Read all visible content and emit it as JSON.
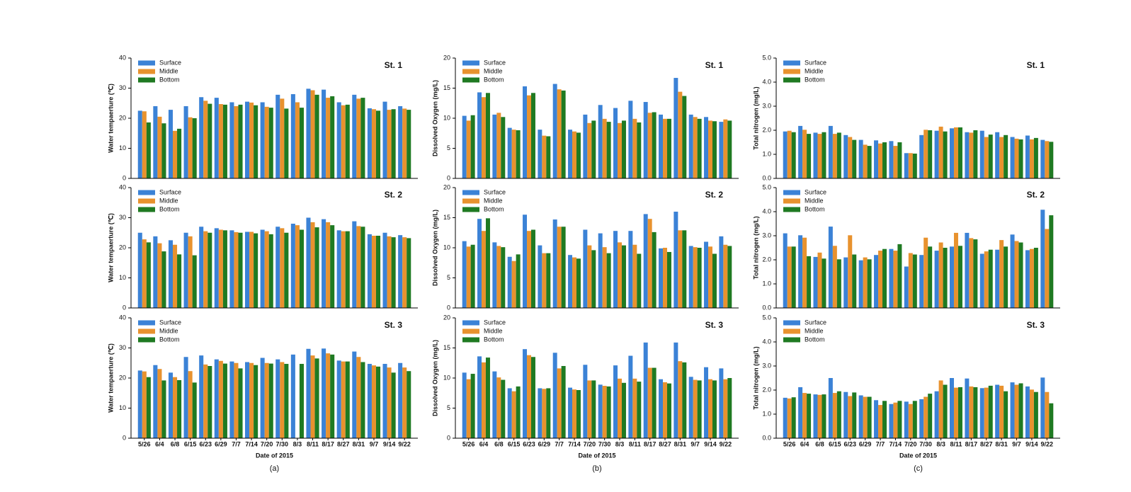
{
  "chart_data": [
    {
      "type": "bar",
      "title": "St. 1",
      "y_label": "Water tempaerture (℃)",
      "ylim": [
        0,
        40
      ],
      "yticks": [
        0,
        10,
        20,
        30,
        40
      ],
      "series": [
        {
          "name": "Surface",
          "color": "#3b82d6",
          "values": [
            22.5,
            24,
            22.8,
            24,
            27,
            26.8,
            25.3,
            25.5,
            25.3,
            27.8,
            28,
            29.8,
            29.5,
            25.3,
            27.8,
            23.3,
            25.5,
            24
          ]
        },
        {
          "name": "Middle",
          "color": "#e8922e",
          "values": [
            22.3,
            20.5,
            15.8,
            20.3,
            25.8,
            24.7,
            24,
            25.2,
            23.8,
            26.5,
            25.3,
            29.3,
            26.8,
            24.3,
            26.5,
            23,
            22.8,
            23.2
          ]
        },
        {
          "name": "Bottom",
          "color": "#1f7a22",
          "values": [
            18.6,
            18.3,
            16.5,
            20,
            24.8,
            24.5,
            24.5,
            24.3,
            23.5,
            23.2,
            23.5,
            27.8,
            27.3,
            24.5,
            26.8,
            22.5,
            23,
            22.8
          ]
        }
      ]
    },
    {
      "type": "bar",
      "title": "St. 2",
      "y_label": "Water tempaerture (℃)",
      "ylim": [
        0,
        40
      ],
      "yticks": [
        0,
        10,
        20,
        30,
        40
      ],
      "series": [
        {
          "name": "Surface",
          "color": "#3b82d6",
          "values": [
            25,
            23.8,
            22.5,
            25,
            27,
            26.5,
            25.8,
            25.3,
            26,
            27,
            28,
            30,
            29.5,
            25.8,
            28.8,
            24.5,
            25,
            24.2
          ]
        },
        {
          "name": "Middle",
          "color": "#e8922e",
          "values": [
            22.8,
            21.5,
            21,
            23.8,
            25.5,
            26,
            25.2,
            25.3,
            25.5,
            26.5,
            27.5,
            28.5,
            28.5,
            25.5,
            27.2,
            24,
            23.8,
            23.5
          ]
        },
        {
          "name": "Bottom",
          "color": "#1f7a22",
          "values": [
            21.8,
            18.8,
            17.8,
            17.5,
            25,
            25.8,
            25,
            24.8,
            24.5,
            25,
            26,
            26.8,
            27.5,
            25.5,
            27,
            24,
            23.5,
            23.2
          ]
        }
      ]
    },
    {
      "type": "bar",
      "title": "St. 3",
      "y_label": "Water tempaerture (℃)",
      "ylim": [
        0,
        40
      ],
      "yticks": [
        0,
        10,
        20,
        30,
        40
      ],
      "x_label": "Date of 2015",
      "caption": "(a)",
      "categories": [
        "5/26",
        "6/4",
        "6/8",
        "6/15",
        "6/23",
        "6/29",
        "7/7",
        "7/14",
        "7/20",
        "7/30",
        "8/3",
        "8/11",
        "8/17",
        "8/27",
        "8/31",
        "9/7",
        "9/14",
        "9/22"
      ],
      "series": [
        {
          "name": "Surface",
          "color": "#3b82d6",
          "values": [
            22.5,
            24.3,
            21.8,
            27,
            27.5,
            26.2,
            25.5,
            25.3,
            26.7,
            26.2,
            27.8,
            29.7,
            29.8,
            25.8,
            28.8,
            24.7,
            24.7,
            25
          ]
        },
        {
          "name": "Middle",
          "color": "#e8922e",
          "values": [
            22.2,
            23,
            20.3,
            22.3,
            24.5,
            25.7,
            25,
            25,
            25,
            25.3,
            null,
            27.5,
            28.2,
            25.5,
            27,
            24.2,
            23.5,
            23.5
          ]
        },
        {
          "name": "Bottom",
          "color": "#1f7a22",
          "values": [
            20.3,
            19.2,
            19.3,
            18.5,
            24,
            24.8,
            23.2,
            24.3,
            24.8,
            24.7,
            24.7,
            26.5,
            27.8,
            25.5,
            25.3,
            23.8,
            21.8,
            22.3
          ]
        }
      ]
    },
    {
      "type": "bar",
      "title": "St. 1",
      "y_label": "Dissolved Oxygen (mg/L)",
      "ylim": [
        0,
        20
      ],
      "yticks": [
        0,
        5,
        10,
        15,
        20
      ],
      "series": [
        {
          "name": "Surface",
          "color": "#3b82d6",
          "values": [
            10.4,
            14.3,
            10.6,
            8.4,
            15.3,
            8.1,
            15.7,
            8.1,
            10.6,
            12.2,
            11.7,
            12.9,
            12.7,
            10.6,
            16.7,
            10.6,
            10.2,
            9.4
          ]
        },
        {
          "name": "Middle",
          "color": "#e8922e",
          "values": [
            9.6,
            13.5,
            10.9,
            8.1,
            13.8,
            7.1,
            14.8,
            7.8,
            9.2,
            9.9,
            9.2,
            9.9,
            10.9,
            9.9,
            14.4,
            10.2,
            9.6,
            9.8
          ]
        },
        {
          "name": "Bottom",
          "color": "#1f7a22",
          "values": [
            10.5,
            14.2,
            10.2,
            8,
            14.2,
            7,
            14.6,
            7.6,
            9.6,
            9.4,
            9.6,
            9.3,
            11,
            9.9,
            13.7,
            9.9,
            9.5,
            9.6
          ]
        }
      ]
    },
    {
      "type": "bar",
      "title": "St. 2",
      "y_label": "Dissolved Oxygen (mg/L)",
      "ylim": [
        0,
        20
      ],
      "yticks": [
        0,
        5,
        10,
        15,
        20
      ],
      "series": [
        {
          "name": "Surface",
          "color": "#3b82d6",
          "values": [
            11.1,
            14.8,
            10.9,
            8.5,
            15.5,
            10.4,
            14.7,
            8.8,
            13,
            12.4,
            12.8,
            12.8,
            15.6,
            9.9,
            16,
            10.3,
            11,
            11.9
          ]
        },
        {
          "name": "Middle",
          "color": "#e8922e",
          "values": [
            10.2,
            12.8,
            10.3,
            7.8,
            12.8,
            9.1,
            13.5,
            8.4,
            10.4,
            10.1,
            10.9,
            10.5,
            14.8,
            10,
            12.9,
            10.1,
            10.2,
            10.5
          ]
        },
        {
          "name": "Bottom",
          "color": "#1f7a22",
          "values": [
            10.5,
            14.9,
            10.1,
            8.9,
            13,
            9.1,
            13.5,
            8.2,
            9.6,
            9.1,
            10.4,
            9,
            12.6,
            9.3,
            12.9,
            10,
            9,
            10.3
          ]
        }
      ]
    },
    {
      "type": "bar",
      "title": "St. 3",
      "y_label": "Dissolved Oxygen (mg/L)",
      "ylim": [
        0,
        20
      ],
      "yticks": [
        0,
        5,
        10,
        15,
        20
      ],
      "x_label": "Date of 2015",
      "caption": "(b)",
      "categories": [
        "5/26",
        "6/4",
        "6/8",
        "6/15",
        "6/23",
        "6/29",
        "7/7",
        "7/14",
        "7/20",
        "7/30",
        "8/3",
        "8/11",
        "8/17",
        "8/27",
        "8/31",
        "9/7",
        "9/14",
        "9/22"
      ],
      "series": [
        {
          "name": "Surface",
          "color": "#3b82d6",
          "values": [
            10.9,
            13.6,
            11.1,
            8.3,
            14.8,
            8.3,
            14.2,
            8.4,
            12.2,
            8.9,
            12.1,
            13.7,
            15.9,
            9.8,
            15.9,
            10.2,
            11.8,
            11.6
          ]
        },
        {
          "name": "Middle",
          "color": "#e8922e",
          "values": [
            9.8,
            12.6,
            10.1,
            7.8,
            13.8,
            8.2,
            11.6,
            8.1,
            9.6,
            8.7,
            9.9,
            9.9,
            11.7,
            9.3,
            12.8,
            9.7,
            9.8,
            9.8
          ]
        },
        {
          "name": "Bottom",
          "color": "#1f7a22",
          "values": [
            10.7,
            13.4,
            9.7,
            8.6,
            13.5,
            8.3,
            12,
            8,
            9.6,
            8.6,
            9.2,
            9.4,
            11.7,
            9.1,
            12.6,
            9.6,
            9.6,
            10
          ]
        }
      ]
    },
    {
      "type": "bar",
      "title": "St. 1",
      "y_label": "Total nitrogen (mg/L)",
      "ylim": [
        0,
        5
      ],
      "yticks": [
        {
          "value": 0,
          "label": "0.0"
        },
        {
          "value": 1,
          "label": "1.0"
        },
        {
          "value": 2,
          "label": "2.0"
        },
        {
          "value": 3,
          "label": "3.0"
        },
        {
          "value": 4,
          "label": "4.0"
        },
        {
          "value": 5,
          "label": "5.0"
        }
      ],
      "series": [
        {
          "name": "Surface",
          "color": "#3b82d6",
          "values": [
            1.95,
            2.18,
            1.9,
            2.18,
            1.8,
            1.6,
            1.58,
            1.55,
            1.05,
            1.8,
            1.98,
            2.08,
            1.92,
            1.98,
            1.92,
            1.72,
            1.78,
            1.6
          ]
        },
        {
          "name": "Middle",
          "color": "#e8922e",
          "values": [
            1.98,
            2.02,
            1.85,
            1.85,
            1.72,
            1.4,
            1.45,
            1.35,
            1.05,
            2.02,
            2.15,
            2.12,
            1.9,
            1.72,
            1.72,
            1.65,
            1.62,
            1.55
          ]
        },
        {
          "name": "Bottom",
          "color": "#1f7a22",
          "values": [
            1.92,
            1.85,
            1.92,
            1.9,
            1.6,
            1.35,
            1.5,
            1.5,
            1.03,
            2,
            1.95,
            2.12,
            2,
            1.82,
            1.8,
            1.62,
            1.68,
            1.52
          ]
        }
      ]
    },
    {
      "type": "bar",
      "title": "St. 2",
      "y_label": "Total nitrogen (mg/L)",
      "ylim": [
        0,
        5
      ],
      "yticks": [
        {
          "value": 0,
          "label": "0.0"
        },
        {
          "value": 1,
          "label": "1.0"
        },
        {
          "value": 2,
          "label": "2.0"
        },
        {
          "value": 3,
          "label": "3.0"
        },
        {
          "value": 4,
          "label": "4.0"
        },
        {
          "value": 5,
          "label": "5.0"
        }
      ],
      "series": [
        {
          "name": "Surface",
          "color": "#3b82d6",
          "values": [
            3.1,
            3.02,
            2.12,
            3.38,
            2.1,
            1.98,
            2.2,
            2.45,
            1.72,
            2.2,
            2.38,
            2.55,
            3.12,
            2.25,
            2.42,
            3.05,
            2.4,
            4.08
          ]
        },
        {
          "name": "Middle",
          "color": "#e8922e",
          "values": [
            2.55,
            2.92,
            2.3,
            2.58,
            3.02,
            2.1,
            2.38,
            2.38,
            2.28,
            2.92,
            2.72,
            3.12,
            2.9,
            2.35,
            2.82,
            2.78,
            2.45,
            3.28
          ]
        },
        {
          "name": "Bottom",
          "color": "#1f7a22",
          "values": [
            2.55,
            2.15,
            2.05,
            2.02,
            2.22,
            2.02,
            2.45,
            2.65,
            2.22,
            2.55,
            2.5,
            2.58,
            2.85,
            2.42,
            2.55,
            2.72,
            2.5,
            3.85
          ]
        }
      ]
    },
    {
      "type": "bar",
      "title": "St. 3",
      "y_label": "Total nitrogen (mg/L)",
      "ylim": [
        0,
        5
      ],
      "yticks": [
        {
          "value": 0,
          "label": "0.0"
        },
        {
          "value": 1,
          "label": "1.0"
        },
        {
          "value": 2,
          "label": "2.0"
        },
        {
          "value": 3,
          "label": "3.0"
        },
        {
          "value": 4,
          "label": "4.0"
        },
        {
          "value": 5,
          "label": "5.0"
        }
      ],
      "x_label": "Date of 2015",
      "caption": "(c)",
      "categories": [
        "5/26",
        "6/4",
        "6/8",
        "6/15",
        "6/23",
        "6/29",
        "7/7",
        "7/14",
        "7/20",
        "7/30",
        "8/3",
        "8/11",
        "8/17",
        "8/27",
        "8/31",
        "9/7",
        "9/14",
        "9/22"
      ],
      "series": [
        {
          "name": "Surface",
          "color": "#3b82d6",
          "values": [
            1.68,
            2.12,
            1.82,
            2.5,
            1.92,
            1.78,
            1.58,
            1.42,
            1.52,
            1.62,
            1.95,
            2.5,
            2.48,
            2.08,
            2.22,
            2.32,
            2.15,
            2.52
          ]
        },
        {
          "name": "Middle",
          "color": "#e8922e",
          "values": [
            1.65,
            1.88,
            1.8,
            1.88,
            1.75,
            1.72,
            1.38,
            1.48,
            1.42,
            1.72,
            2.4,
            2.1,
            2.15,
            2.1,
            2.18,
            2.22,
            2.02,
            1.92
          ]
        },
        {
          "name": "Bottom",
          "color": "#1f7a22",
          "values": [
            1.7,
            1.85,
            1.82,
            1.95,
            1.9,
            1.72,
            1.55,
            1.55,
            1.55,
            1.85,
            2.22,
            2.12,
            2.12,
            2.18,
            1.95,
            2.28,
            1.92,
            1.45
          ]
        }
      ]
    }
  ]
}
